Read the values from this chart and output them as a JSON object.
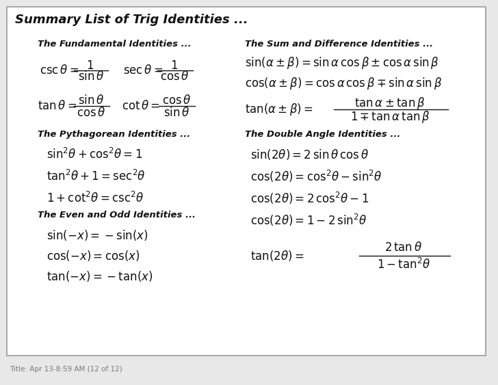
{
  "title": "Summary List of Trig Identities ...",
  "background_color": "#e8e8e8",
  "box_facecolor": "#ffffff",
  "box_edgecolor": "#999999",
  "text_color": "#111111",
  "footer": "Title: Apr 13-8:59 AM (12 of 12)",
  "footer_color": "#777777",
  "sections": {
    "fundamental_header": "The Fundamental Identities ...",
    "sum_diff_header": "The Sum and Difference Identities ...",
    "pythagorean_header": "The Pythagorean Identities ...",
    "double_angle_header": "The Double Angle Identities ...",
    "even_odd_header": "The Even and Odd Identities ..."
  },
  "figsize": [
    7.28,
    5.63
  ],
  "dpi": 100
}
